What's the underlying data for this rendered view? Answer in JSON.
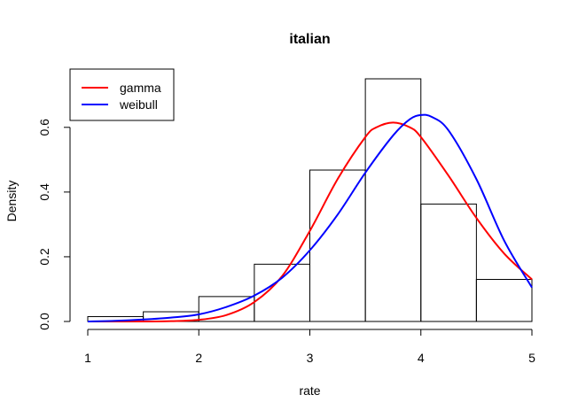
{
  "chart_data": {
    "type": "histogram",
    "title": "italian",
    "xlabel": "rate",
    "ylabel": "Density",
    "xlim": [
      1,
      5
    ],
    "ylim": [
      0,
      0.75
    ],
    "x_ticks": [
      1,
      2,
      3,
      4,
      5
    ],
    "y_ticks": [
      0.0,
      0.2,
      0.4,
      0.6
    ],
    "x_tick_labels": [
      "1",
      "2",
      "3",
      "4",
      "5"
    ],
    "y_tick_labels": [
      "0.0",
      "0.2",
      "0.4",
      "0.6"
    ],
    "bins": [
      {
        "start": 1.0,
        "end": 1.5,
        "density": 0.015
      },
      {
        "start": 1.5,
        "end": 2.0,
        "density": 0.03
      },
      {
        "start": 2.0,
        "end": 2.5,
        "density": 0.077
      },
      {
        "start": 2.5,
        "end": 3.0,
        "density": 0.177
      },
      {
        "start": 3.0,
        "end": 3.5,
        "density": 0.468
      },
      {
        "start": 3.5,
        "end": 4.0,
        "density": 0.75
      },
      {
        "start": 4.0,
        "end": 4.5,
        "density": 0.363
      },
      {
        "start": 4.5,
        "end": 5.0,
        "density": 0.13
      }
    ],
    "series": [
      {
        "name": "gamma",
        "color": "#ff0000",
        "x": [
          1.0,
          1.25,
          1.5,
          1.75,
          2.0,
          2.25,
          2.5,
          2.75,
          3.0,
          3.25,
          3.5,
          3.6,
          3.75,
          3.9,
          4.0,
          4.25,
          4.5,
          4.75,
          5.0
        ],
        "y": [
          0.0,
          0.0,
          0.0,
          0.001,
          0.005,
          0.02,
          0.06,
          0.14,
          0.28,
          0.44,
          0.57,
          0.6,
          0.615,
          0.6,
          0.57,
          0.45,
          0.32,
          0.21,
          0.13
        ]
      },
      {
        "name": "weibull",
        "color": "#0000ff",
        "x": [
          1.0,
          1.25,
          1.5,
          1.75,
          2.0,
          2.25,
          2.5,
          2.75,
          3.0,
          3.25,
          3.5,
          3.75,
          3.9,
          4.0,
          4.1,
          4.25,
          4.5,
          4.75,
          5.0
        ],
        "y": [
          0.0,
          0.002,
          0.006,
          0.012,
          0.022,
          0.045,
          0.08,
          0.135,
          0.22,
          0.33,
          0.46,
          0.575,
          0.625,
          0.638,
          0.632,
          0.59,
          0.44,
          0.25,
          0.105
        ]
      }
    ],
    "legend": {
      "placement": "top-left",
      "entries": [
        "gamma",
        "weibull"
      ]
    }
  }
}
